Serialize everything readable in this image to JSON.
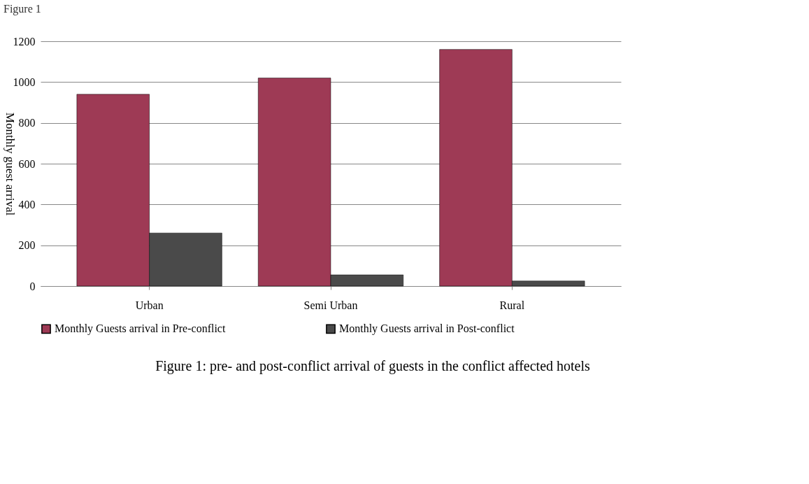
{
  "chart_data": {
    "type": "bar",
    "title": "Figure 1",
    "ylabel": "Monthly guest arrival",
    "categories": [
      "Urban",
      "Semi Urban",
      "Rural"
    ],
    "series": [
      {
        "name": "Monthly Guests arrival in Pre-conflict",
        "color": "#9e3a55",
        "values": [
          940,
          1020,
          1160
        ]
      },
      {
        "name": "Monthly Guests arrival in Post-conflict",
        "color": "#4a4a4a",
        "values": [
          260,
          55,
          25
        ]
      }
    ],
    "ylim": [
      0,
      1200
    ],
    "yticks": [
      0,
      200,
      400,
      600,
      800,
      1000,
      1200
    ],
    "grid": "y",
    "legend": "bottom",
    "annotations": [
      "Figure 1: pre- and post-conflict arrival of guests in the conflict affected hotels"
    ]
  }
}
